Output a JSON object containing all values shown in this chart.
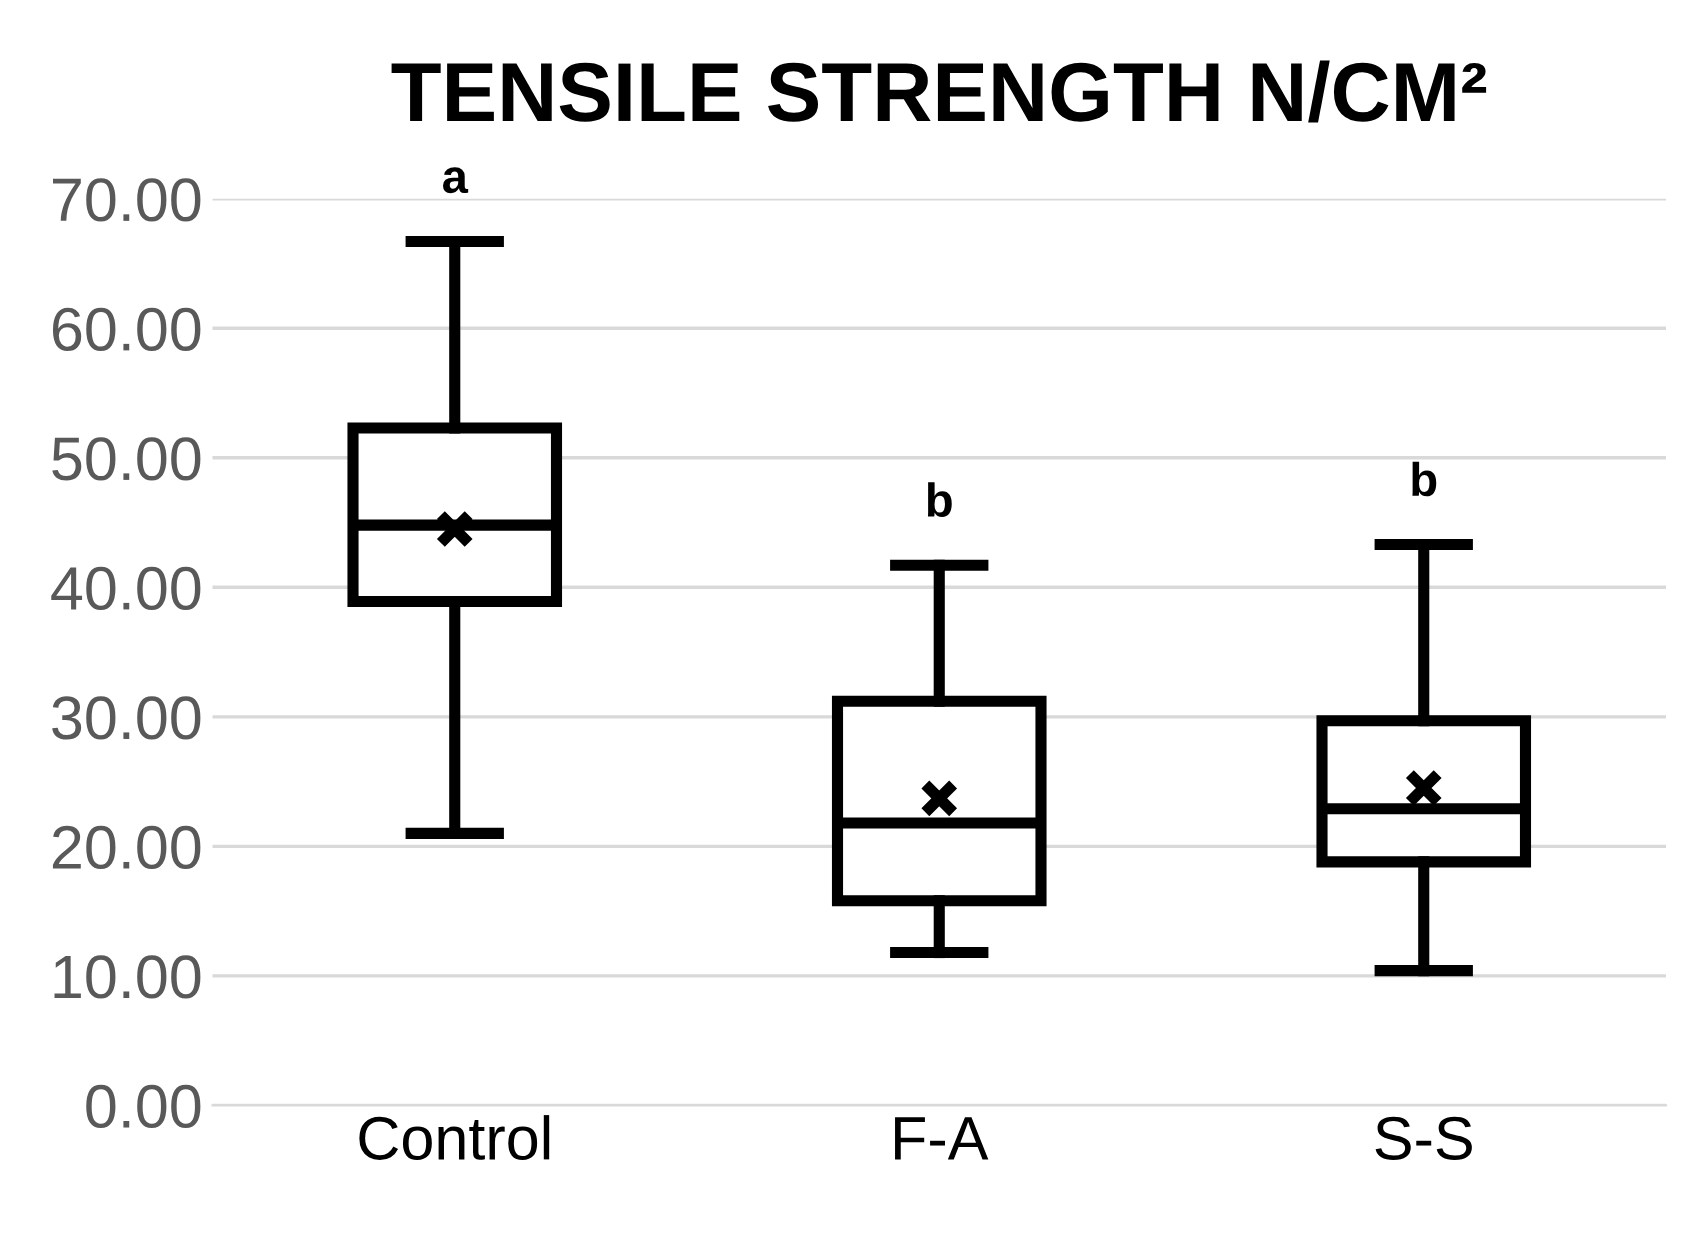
{
  "chart_data": {
    "type": "box",
    "title": "TENSILE STRENGTH N/CM²",
    "categories": [
      "Control",
      "F-A",
      "S-S"
    ],
    "boxes": [
      {
        "low": 21.0,
        "q1": 38.9,
        "median": 44.8,
        "q3": 52.3,
        "high": 66.7,
        "mean": 44.5
      },
      {
        "low": 11.8,
        "q1": 15.8,
        "median": 21.8,
        "q3": 31.2,
        "high": 41.7,
        "mean": 23.7
      },
      {
        "low": 10.4,
        "q1": 18.8,
        "median": 22.9,
        "q3": 29.7,
        "high": 43.3,
        "mean": 24.5
      }
    ],
    "color": "#000000",
    "ylim": [
      0,
      70
    ],
    "yticks": [
      {
        "value": 0,
        "label": "0.00"
      },
      {
        "value": 10,
        "label": "10.00"
      },
      {
        "value": 20,
        "label": "20.00"
      },
      {
        "value": 30,
        "label": "30.00"
      },
      {
        "value": 40,
        "label": "40.00"
      },
      {
        "value": 50,
        "label": "50.00"
      },
      {
        "value": 60,
        "label": "60.00"
      },
      {
        "value": 70,
        "label": "70.00"
      }
    ],
    "grid": "y",
    "annotations": [
      "a",
      "b",
      "b"
    ]
  }
}
